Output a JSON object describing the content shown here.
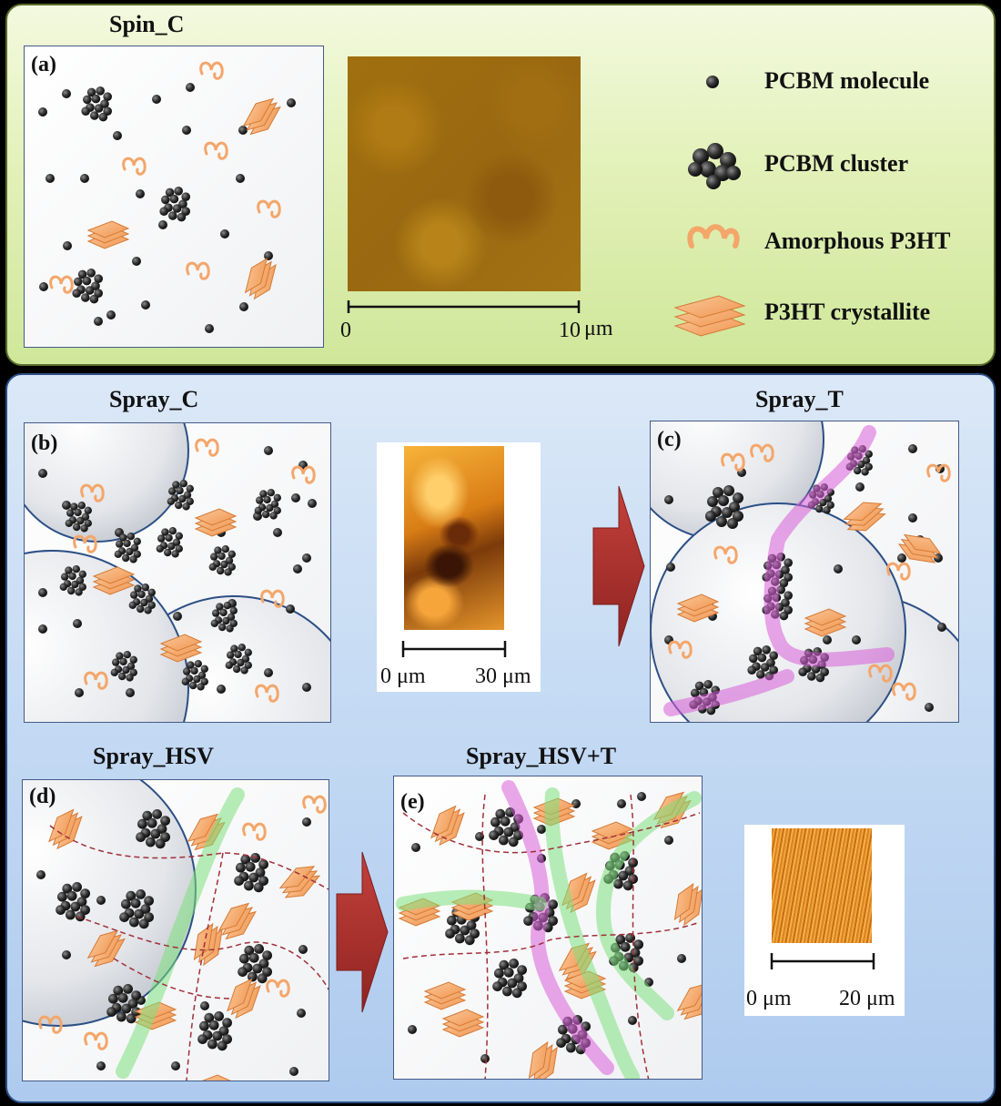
{
  "panel_titles": {
    "spin_c": "Spin_C",
    "spray_c": "Spray_C",
    "spray_t": "Spray_T",
    "spray_hsv": "Spray_HSV",
    "spray_hsv_t": "Spray_HSV+T"
  },
  "panel_labels": {
    "a": "(a)",
    "b": "(b)",
    "c": "(c)",
    "d": "(d)",
    "e": "(e)"
  },
  "legend": {
    "pcbm_molecule": "PCBM molecule",
    "pcbm_cluster": "PCBM cluster",
    "amorphous_p3ht": "Amorphous P3HT",
    "p3ht_crystallite": "P3HT crystallite"
  },
  "scale_bars": {
    "a_start": "0",
    "a_end": "10",
    "a_unit": "μm",
    "b_start": "0 μm",
    "b_end": "30 μm",
    "e_start": "0 μm",
    "e_end": "20 μm"
  },
  "colors": {
    "top_panel": "#e3f1b9",
    "bottom_panel": "#c7dcf4",
    "p3ht_orange": "#f4a66a",
    "pcbm_dark": "#3a3a3a",
    "arrow_red": "#b0302c",
    "path_magenta": "#d95fd9",
    "path_green": "#7de07d"
  }
}
